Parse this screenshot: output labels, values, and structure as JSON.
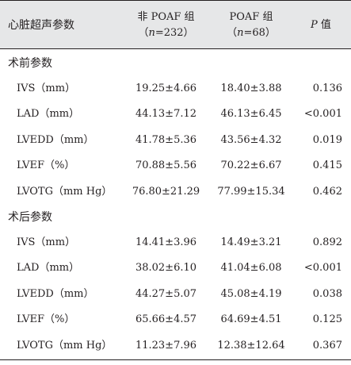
{
  "header": {
    "col1": "心脏超声参数",
    "col2_line1": "非 POAF 组",
    "col2_n_open": "（",
    "col2_n_var": "n",
    "col2_n_rest": "=232）",
    "col3_line1": "POAF 组",
    "col3_n_open": "（",
    "col3_n_var": "n",
    "col3_n_rest": "=68）",
    "col4_var": "P",
    "col4_rest": " 值"
  },
  "sections": [
    {
      "title": "术前参数",
      "rows": [
        {
          "param": "IVS（mm）",
          "non_poaf": "19.25±4.66",
          "poaf": "18.40±3.88",
          "p": "0.136"
        },
        {
          "param": "LAD（mm）",
          "non_poaf": "44.13±7.12",
          "poaf": "46.13±6.45",
          "p": "<0.001"
        },
        {
          "param": "LVEDD（mm）",
          "non_poaf": "41.78±5.36",
          "poaf": "43.56±4.32",
          "p": "0.019"
        },
        {
          "param": "LVEF（%）",
          "non_poaf": "70.88±5.56",
          "poaf": "70.22±6.67",
          "p": "0.415"
        },
        {
          "param": "LVOTG（mm Hg）",
          "non_poaf": "76.80±21.29",
          "poaf": "77.99±15.34",
          "p": "0.462"
        }
      ]
    },
    {
      "title": "术后参数",
      "rows": [
        {
          "param": "IVS（mm）",
          "non_poaf": "14.41±3.96",
          "poaf": "14.49±3.21",
          "p": "0.892"
        },
        {
          "param": "LAD（mm）",
          "non_poaf": "38.02±6.10",
          "poaf": "41.04±6.08",
          "p": "<0.001"
        },
        {
          "param": "LVEDD（mm）",
          "non_poaf": "44.27±5.07",
          "poaf": "45.08±4.19",
          "p": "0.038"
        },
        {
          "param": "LVEF（%）",
          "non_poaf": "65.66±4.57",
          "poaf": "64.69±4.51",
          "p": "0.125"
        },
        {
          "param": "LVOTG（mm Hg）",
          "non_poaf": "11.23±7.96",
          "poaf": "12.38±12.64",
          "p": "0.367"
        }
      ]
    }
  ]
}
